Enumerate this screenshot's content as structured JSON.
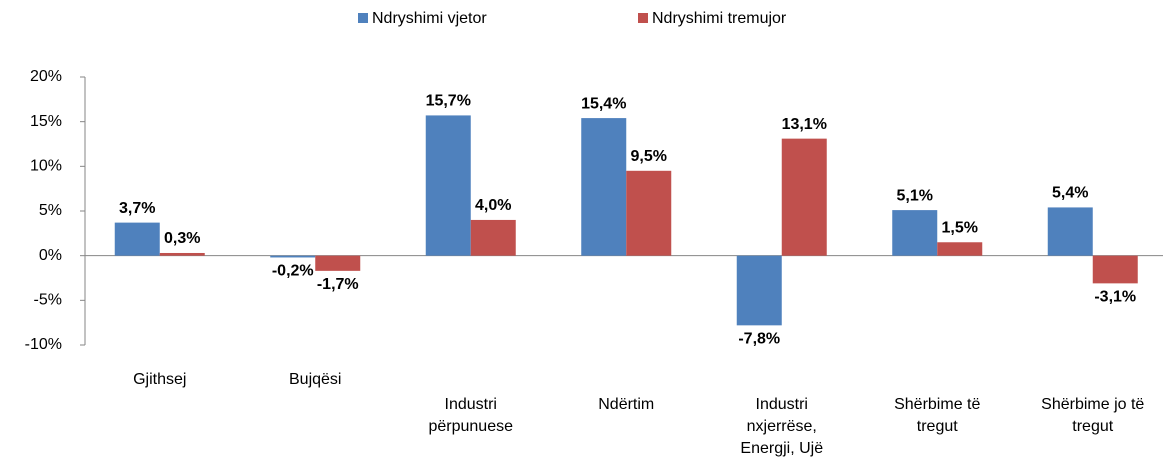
{
  "chart_data": {
    "type": "bar",
    "categories": [
      "Gjithsej",
      "Bujqësi",
      "Industri përpunuese",
      "Ndërtim",
      "Industri nxjerrëse, Energji, Ujë",
      "Shërbime të tregut",
      "Shërbime jo të tregut"
    ],
    "series": [
      {
        "name": "Ndryshimi vjetor",
        "color": "#4f81bd",
        "values": [
          3.7,
          -0.2,
          15.7,
          15.4,
          -7.8,
          5.1,
          5.4
        ],
        "value_labels": [
          "3,7%",
          "-0,2%",
          "15,7%",
          "15,4%",
          "-7,8%",
          "5,1%",
          "5,4%"
        ]
      },
      {
        "name": "Ndryshimi tremujor",
        "color": "#c0504d",
        "values": [
          0.3,
          -1.7,
          4.0,
          9.5,
          13.1,
          1.5,
          -3.1
        ],
        "value_labels": [
          "0,3%",
          "-1,7%",
          "4,0%",
          "9,5%",
          "13,1%",
          "1,5%",
          "-3,1%"
        ]
      }
    ],
    "ylim": [
      -10,
      20
    ],
    "yticks": [
      {
        "value": -10,
        "label": "-10%"
      },
      {
        "value": -5,
        "label": "-5%"
      },
      {
        "value": 0,
        "label": "0%"
      },
      {
        "value": 5,
        "label": "5%"
      },
      {
        "value": 10,
        "label": "10%"
      },
      {
        "value": 15,
        "label": "15%"
      },
      {
        "value": 20,
        "label": "20%"
      }
    ],
    "grid": false,
    "legend": "top"
  }
}
